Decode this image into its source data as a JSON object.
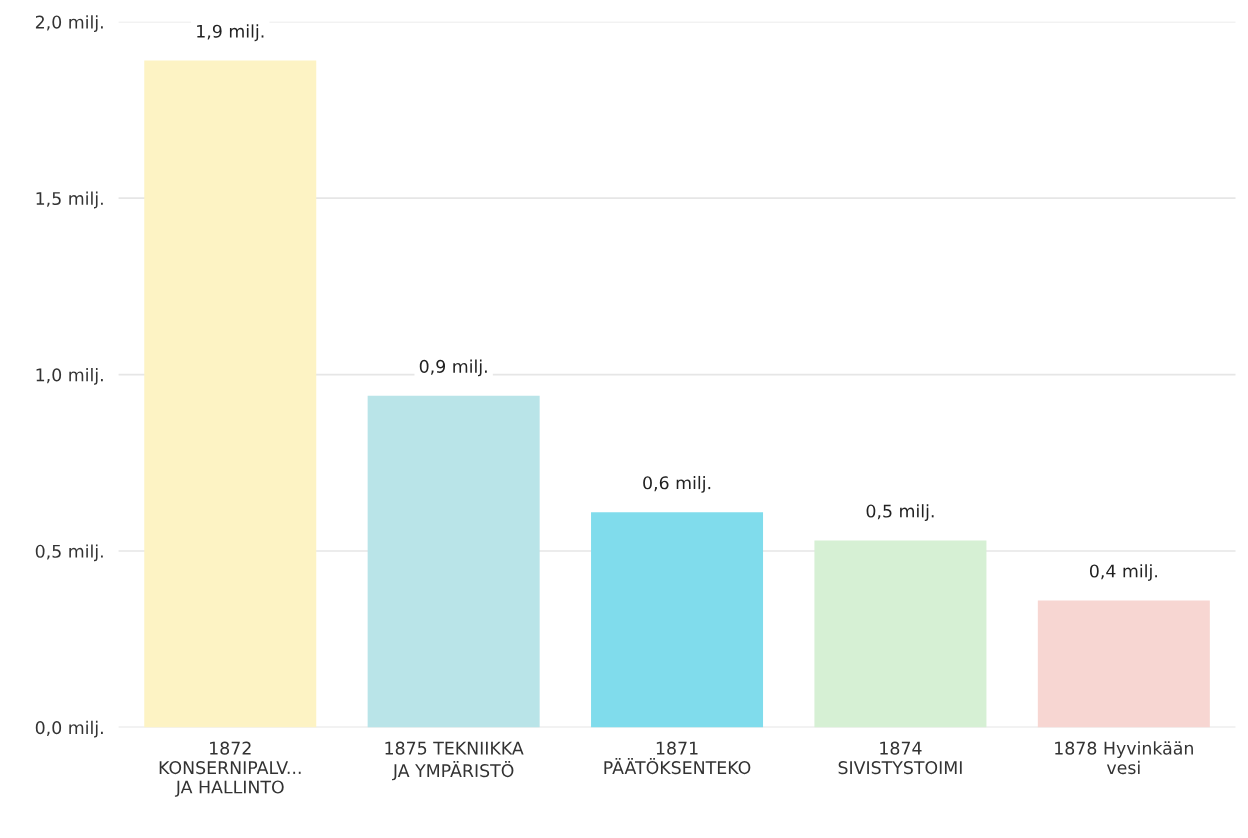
{
  "chart_data": {
    "type": "bar",
    "categories": [
      "1872\nKONSERNIPALV...\nJA HALLINTO",
      "1875 TEKNIIKKA\nJA YMPÄRISTÖ",
      "1871\nPÄÄTÖKSENTEKO",
      "1874\nSIVISTYSTOIMI",
      "1878 Hyvinkään\nvesi"
    ],
    "values": [
      1.89,
      0.94,
      0.61,
      0.53,
      0.36
    ],
    "colors": [
      "#fdf3c4",
      "#b9e4e8",
      "#80dcec",
      "#d6f0d4",
      "#f7d6d2"
    ],
    "value_labels": [
      "1,9 milj.",
      "0,9 milj.",
      "0,6 milj.",
      "0,5 milj.",
      "0,4 milj."
    ],
    "ylim": [
      0,
      2.0
    ],
    "yticks": [
      {
        "value": 0,
        "label": "0,0 milj."
      },
      {
        "value": 0.5,
        "label": "0,5 milj."
      },
      {
        "value": 1.0,
        "label": "1,0 milj."
      },
      {
        "value": 1.5,
        "label": "1,5 milj."
      },
      {
        "value": 2.0,
        "label": "2,0 milj."
      }
    ],
    "grid": "y"
  }
}
